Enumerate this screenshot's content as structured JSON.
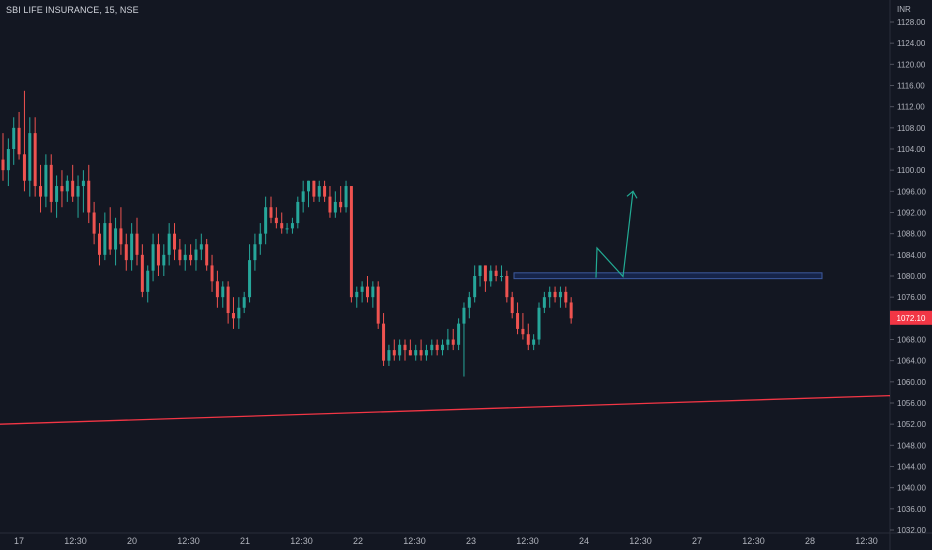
{
  "header": {
    "symbol_title": "SBI LIFE INSURANCE, 15, NSE",
    "currency": "INR"
  },
  "colors": {
    "background": "#131722",
    "up": "#26a69a",
    "down": "#ef5350",
    "trendline": "#f23645",
    "zone": "#2962ff",
    "arrow": "#22ab94",
    "axis_text": "#b2b5be",
    "last_price_bg": "#f23645"
  },
  "chart_data": {
    "type": "candlestick",
    "title": "SBI LIFE INSURANCE, 15, NSE",
    "y_axis": {
      "ticks": [
        "1128.00",
        "1124.00",
        "1120.00",
        "1116.00",
        "1112.00",
        "1108.00",
        "1104.00",
        "1100.00",
        "1096.00",
        "1092.00",
        "1088.00",
        "1084.00",
        "1080.00",
        "1076.00",
        "1072.00",
        "1068.00",
        "1064.00",
        "1060.00",
        "1056.00",
        "1052.00",
        "1048.00",
        "1044.00",
        "1040.00",
        "1036.00",
        "1032.00"
      ],
      "range": [
        1031,
        1130
      ],
      "currency": "INR"
    },
    "x_axis": {
      "ticks": [
        "17",
        "12:30",
        "20",
        "12:30",
        "21",
        "12:30",
        "22",
        "12:30",
        "23",
        "12:30",
        "24",
        "12:30",
        "27",
        "12:30",
        "28",
        "12:30"
      ]
    },
    "last_price": "1072.10",
    "series": [
      {
        "o": 1102,
        "h": 1107,
        "l": 1098,
        "c": 1100
      },
      {
        "o": 1100,
        "h": 1106,
        "l": 1097,
        "c": 1104
      },
      {
        "o": 1104,
        "h": 1110,
        "l": 1101,
        "c": 1108
      },
      {
        "o": 1108,
        "h": 1111,
        "l": 1102,
        "c": 1103
      },
      {
        "o": 1103,
        "h": 1115,
        "l": 1096,
        "c": 1098
      },
      {
        "o": 1098,
        "h": 1110,
        "l": 1095,
        "c": 1107
      },
      {
        "o": 1107,
        "h": 1110,
        "l": 1095,
        "c": 1097
      },
      {
        "o": 1097,
        "h": 1101,
        "l": 1092,
        "c": 1095
      },
      {
        "o": 1095,
        "h": 1103,
        "l": 1093,
        "c": 1101
      },
      {
        "o": 1101,
        "h": 1103,
        "l": 1092,
        "c": 1094
      },
      {
        "o": 1094,
        "h": 1099,
        "l": 1091,
        "c": 1097
      },
      {
        "o": 1097,
        "h": 1100,
        "l": 1093,
        "c": 1096
      },
      {
        "o": 1096,
        "h": 1099,
        "l": 1094,
        "c": 1098
      },
      {
        "o": 1098,
        "h": 1101,
        "l": 1094,
        "c": 1095
      },
      {
        "o": 1095,
        "h": 1099,
        "l": 1091,
        "c": 1097
      },
      {
        "o": 1097,
        "h": 1100,
        "l": 1092,
        "c": 1098
      },
      {
        "o": 1098,
        "h": 1101,
        "l": 1090,
        "c": 1092
      },
      {
        "o": 1092,
        "h": 1094,
        "l": 1086,
        "c": 1088
      },
      {
        "o": 1088,
        "h": 1090,
        "l": 1082,
        "c": 1084
      },
      {
        "o": 1084,
        "h": 1092,
        "l": 1083,
        "c": 1090
      },
      {
        "o": 1090,
        "h": 1093,
        "l": 1084,
        "c": 1085
      },
      {
        "o": 1085,
        "h": 1091,
        "l": 1082,
        "c": 1089
      },
      {
        "o": 1089,
        "h": 1093,
        "l": 1084,
        "c": 1086
      },
      {
        "o": 1086,
        "h": 1088,
        "l": 1081,
        "c": 1083
      },
      {
        "o": 1083,
        "h": 1090,
        "l": 1081,
        "c": 1088
      },
      {
        "o": 1088,
        "h": 1091,
        "l": 1082,
        "c": 1084
      },
      {
        "o": 1084,
        "h": 1086,
        "l": 1076,
        "c": 1077
      },
      {
        "o": 1077,
        "h": 1082,
        "l": 1075,
        "c": 1081
      },
      {
        "o": 1081,
        "h": 1088,
        "l": 1079,
        "c": 1086
      },
      {
        "o": 1086,
        "h": 1088,
        "l": 1080,
        "c": 1082
      },
      {
        "o": 1082,
        "h": 1086,
        "l": 1080,
        "c": 1084
      },
      {
        "o": 1084,
        "h": 1090,
        "l": 1082,
        "c": 1088
      },
      {
        "o": 1088,
        "h": 1090,
        "l": 1083,
        "c": 1085
      },
      {
        "o": 1085,
        "h": 1087,
        "l": 1082,
        "c": 1083
      },
      {
        "o": 1083,
        "h": 1086,
        "l": 1081,
        "c": 1084
      },
      {
        "o": 1084,
        "h": 1086,
        "l": 1082,
        "c": 1083
      },
      {
        "o": 1083,
        "h": 1087,
        "l": 1081,
        "c": 1085
      },
      {
        "o": 1085,
        "h": 1088,
        "l": 1083,
        "c": 1086
      },
      {
        "o": 1086,
        "h": 1087,
        "l": 1081,
        "c": 1082
      },
      {
        "o": 1082,
        "h": 1084,
        "l": 1077,
        "c": 1079
      },
      {
        "o": 1079,
        "h": 1081,
        "l": 1074,
        "c": 1076
      },
      {
        "o": 1076,
        "h": 1079,
        "l": 1074,
        "c": 1078
      },
      {
        "o": 1078,
        "h": 1079,
        "l": 1071,
        "c": 1073
      },
      {
        "o": 1073,
        "h": 1076,
        "l": 1070,
        "c": 1072
      },
      {
        "o": 1072,
        "h": 1076,
        "l": 1070,
        "c": 1074
      },
      {
        "o": 1074,
        "h": 1077,
        "l": 1073,
        "c": 1076
      },
      {
        "o": 1076,
        "h": 1086,
        "l": 1075,
        "c": 1083
      },
      {
        "o": 1083,
        "h": 1088,
        "l": 1081,
        "c": 1086
      },
      {
        "o": 1086,
        "h": 1090,
        "l": 1084,
        "c": 1088
      },
      {
        "o": 1088,
        "h": 1095,
        "l": 1086,
        "c": 1093
      },
      {
        "o": 1093,
        "h": 1095,
        "l": 1090,
        "c": 1091
      },
      {
        "o": 1091,
        "h": 1093,
        "l": 1089,
        "c": 1090
      },
      {
        "o": 1090,
        "h": 1092,
        "l": 1088,
        "c": 1089
      },
      {
        "o": 1089,
        "h": 1090,
        "l": 1088,
        "c": 1089
      },
      {
        "o": 1089,
        "h": 1091,
        "l": 1088,
        "c": 1090
      },
      {
        "o": 1090,
        "h": 1095,
        "l": 1089,
        "c": 1094
      },
      {
        "o": 1094,
        "h": 1098,
        "l": 1092,
        "c": 1096
      },
      {
        "o": 1096,
        "h": 1098,
        "l": 1093,
        "c": 1098
      },
      {
        "o": 1098,
        "h": 1098,
        "l": 1094,
        "c": 1095
      },
      {
        "o": 1095,
        "h": 1098,
        "l": 1094,
        "c": 1097
      },
      {
        "o": 1097,
        "h": 1098,
        "l": 1094,
        "c": 1095
      },
      {
        "o": 1095,
        "h": 1097,
        "l": 1091,
        "c": 1092
      },
      {
        "o": 1092,
        "h": 1096,
        "l": 1091,
        "c": 1094
      },
      {
        "o": 1094,
        "h": 1097,
        "l": 1092,
        "c": 1093
      },
      {
        "o": 1093,
        "h": 1098,
        "l": 1092,
        "c": 1097
      },
      {
        "o": 1097,
        "h": 1097,
        "l": 1075,
        "c": 1076
      },
      {
        "o": 1076,
        "h": 1078,
        "l": 1074,
        "c": 1077
      },
      {
        "o": 1077,
        "h": 1079,
        "l": 1075,
        "c": 1078
      },
      {
        "o": 1078,
        "h": 1080,
        "l": 1075,
        "c": 1076
      },
      {
        "o": 1076,
        "h": 1079,
        "l": 1074,
        "c": 1078
      },
      {
        "o": 1078,
        "h": 1079,
        "l": 1070,
        "c": 1071
      },
      {
        "o": 1071,
        "h": 1073,
        "l": 1063,
        "c": 1064
      },
      {
        "o": 1064,
        "h": 1067,
        "l": 1063,
        "c": 1066
      },
      {
        "o": 1066,
        "h": 1068,
        "l": 1064,
        "c": 1065
      },
      {
        "o": 1065,
        "h": 1068,
        "l": 1064,
        "c": 1067
      },
      {
        "o": 1067,
        "h": 1068,
        "l": 1064,
        "c": 1066
      },
      {
        "o": 1066,
        "h": 1068,
        "l": 1065,
        "c": 1065
      },
      {
        "o": 1065,
        "h": 1067,
        "l": 1064,
        "c": 1066
      },
      {
        "o": 1066,
        "h": 1068,
        "l": 1064,
        "c": 1065
      },
      {
        "o": 1065,
        "h": 1067,
        "l": 1064,
        "c": 1066
      },
      {
        "o": 1066,
        "h": 1068,
        "l": 1065,
        "c": 1067
      },
      {
        "o": 1067,
        "h": 1068,
        "l": 1065,
        "c": 1066
      },
      {
        "o": 1066,
        "h": 1068,
        "l": 1065,
        "c": 1067
      },
      {
        "o": 1067,
        "h": 1070,
        "l": 1066,
        "c": 1068
      },
      {
        "o": 1068,
        "h": 1070,
        "l": 1066,
        "c": 1067
      },
      {
        "o": 1067,
        "h": 1072,
        "l": 1066,
        "c": 1071
      },
      {
        "o": 1071,
        "h": 1075,
        "l": 1061,
        "c": 1074
      },
      {
        "o": 1074,
        "h": 1077,
        "l": 1072,
        "c": 1076
      },
      {
        "o": 1076,
        "h": 1082,
        "l": 1075,
        "c": 1080
      },
      {
        "o": 1080,
        "h": 1082,
        "l": 1078,
        "c": 1082
      },
      {
        "o": 1082,
        "h": 1082,
        "l": 1077,
        "c": 1079
      },
      {
        "o": 1079,
        "h": 1082,
        "l": 1078,
        "c": 1081
      },
      {
        "o": 1081,
        "h": 1082,
        "l": 1079,
        "c": 1080
      },
      {
        "o": 1080,
        "h": 1082,
        "l": 1079,
        "c": 1080
      },
      {
        "o": 1080,
        "h": 1081,
        "l": 1075,
        "c": 1076
      },
      {
        "o": 1076,
        "h": 1077,
        "l": 1072,
        "c": 1073
      },
      {
        "o": 1073,
        "h": 1075,
        "l": 1069,
        "c": 1070
      },
      {
        "o": 1070,
        "h": 1073,
        "l": 1068,
        "c": 1069
      },
      {
        "o": 1069,
        "h": 1071,
        "l": 1066,
        "c": 1067
      },
      {
        "o": 1067,
        "h": 1069,
        "l": 1066,
        "c": 1068
      },
      {
        "o": 1068,
        "h": 1075,
        "l": 1067,
        "c": 1074
      },
      {
        "o": 1074,
        "h": 1077,
        "l": 1073,
        "c": 1076
      },
      {
        "o": 1076,
        "h": 1078,
        "l": 1074,
        "c": 1077
      },
      {
        "o": 1077,
        "h": 1078,
        "l": 1075,
        "c": 1076
      },
      {
        "o": 1076,
        "h": 1078,
        "l": 1074,
        "c": 1077
      },
      {
        "o": 1077,
        "h": 1078,
        "l": 1074,
        "c": 1075
      },
      {
        "o": 1075,
        "h": 1076,
        "l": 1071,
        "c": 1072
      }
    ],
    "drawings": {
      "trendline": {
        "start_x_label": "17",
        "start_y": 1052.0,
        "end_x_label": "12:30",
        "end_y": 1057.4
      },
      "zone": {
        "y_top": 1080.6,
        "y_bottom": 1079.5
      },
      "arrow_path": [
        1079.7,
        1085.3,
        1079.9,
        1096.0
      ]
    }
  }
}
